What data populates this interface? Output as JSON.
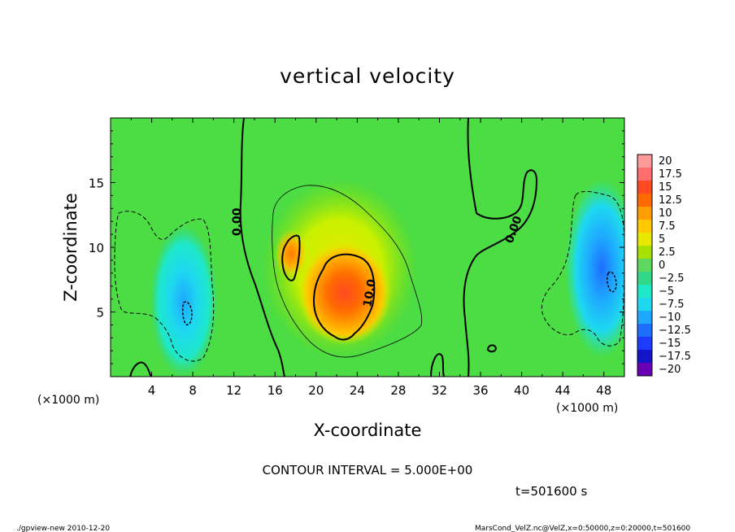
{
  "chart_data": {
    "type": "heatmap",
    "title": "vertical velocity",
    "xlabel": "X-coordinate",
    "ylabel": "Z-coordinate",
    "x_unit": "(×1000 m)",
    "z_unit": "(×1000 m)",
    "xlim": [
      0,
      50
    ],
    "zlim": [
      0,
      20
    ],
    "x_ticks": [
      4,
      8,
      12,
      16,
      20,
      24,
      28,
      32,
      36,
      40,
      44,
      48
    ],
    "z_ticks": [
      5,
      10,
      15
    ],
    "colorbar": {
      "levels": [
        20,
        17.5,
        15,
        12.5,
        10,
        7.5,
        5,
        2.5,
        0,
        -2.5,
        -5,
        -7.5,
        -10,
        -12.5,
        -15,
        -17.5,
        -20
      ],
      "labels": [
        "20",
        "17.5",
        "15",
        "12.5",
        "10",
        "7.5",
        "5",
        "2.5",
        "0",
        "−2.5",
        "−5",
        "−7.5",
        "−10",
        "−12.5",
        "−15",
        "−17.5",
        "−20"
      ],
      "colors": [
        "#ff9a9a",
        "#ff6d6d",
        "#ff4a22",
        "#ff6a00",
        "#ff9e00",
        "#ffc800",
        "#e8e800",
        "#a8e000",
        "#5ed85e",
        "#32d888",
        "#1ee8c8",
        "#1ed8f0",
        "#1ea8ff",
        "#1e6eff",
        "#1e3cff",
        "#1414c8",
        "#6a00b4"
      ]
    },
    "features": [
      {
        "kind": "updraft",
        "x_center": 22.5,
        "z_center": 6.5,
        "peak": 15
      },
      {
        "kind": "updraft",
        "x_center": 18.0,
        "z_center": 9.5,
        "peak": 10
      },
      {
        "kind": "downdraft",
        "x_center": 7.5,
        "z_center": 5.0,
        "peak": -7.5
      },
      {
        "kind": "downdraft",
        "x_center": 47.5,
        "z_center": 8.0,
        "peak": -10
      }
    ],
    "contour_labels": [
      "0.00",
      "10.0",
      "0.00"
    ],
    "contour_interval_text": "CONTOUR INTERVAL = 5.000E+00",
    "time_text": "t=501600 s"
  },
  "footer": {
    "left": "./gpview-new  2010-12-20",
    "right": "MarsCond_VelZ.nc@VelZ,x=0:50000,z=0:20000,t=501600"
  }
}
